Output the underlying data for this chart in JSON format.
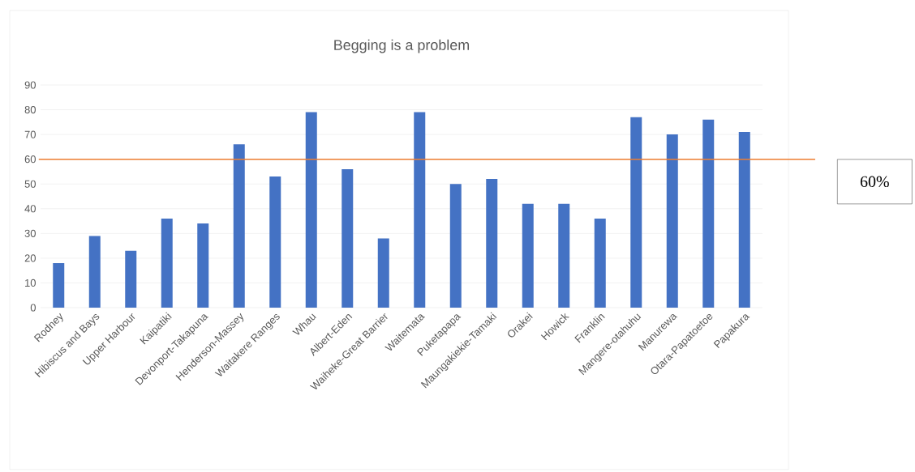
{
  "chart_data": {
    "type": "bar",
    "title": "Begging is a problem",
    "categories": [
      "Rodney",
      "Hibiscus and Bays",
      "Upper Harbour",
      "Kaipatiki",
      "Devonport-Takapuna",
      "Henderson-Massey",
      "Waitakere Ranges",
      "Whau",
      "Albert-Eden",
      "Waiheke-Great Barrier",
      "Waitemata",
      "Puketapapa",
      "Maungakiekie-Tamaki",
      "Orakei",
      "Howick",
      "Franklin",
      "Mangere-otahuhu",
      "Manurewa",
      "Otara-Papatoetoe",
      "Papakura"
    ],
    "values": [
      18,
      29,
      23,
      36,
      34,
      66,
      53,
      79,
      56,
      28,
      79,
      50,
      52,
      42,
      42,
      36,
      77,
      70,
      76,
      71
    ],
    "color": "#4472c4",
    "ylim": [
      0,
      90
    ],
    "yticks": [
      0,
      10,
      20,
      30,
      40,
      50,
      60,
      70,
      80,
      90
    ],
    "grid": "y",
    "ref_lines": [
      {
        "axis": "y",
        "value": 60,
        "label": "60%",
        "color": "#ed7d31"
      }
    ]
  }
}
